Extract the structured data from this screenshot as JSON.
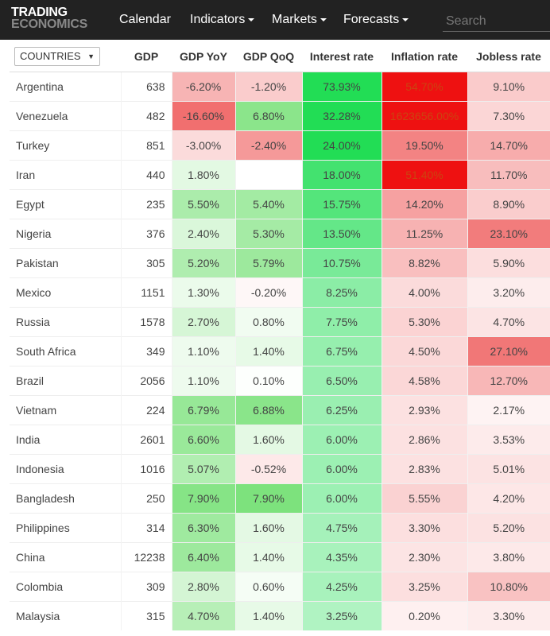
{
  "header": {
    "logo_line1": "TRADING",
    "logo_line2": "ECONOMICS",
    "nav": [
      {
        "label": "Calendar",
        "dropdown": false
      },
      {
        "label": "Indicators",
        "dropdown": true
      },
      {
        "label": "Markets",
        "dropdown": true
      },
      {
        "label": "Forecasts",
        "dropdown": true
      }
    ],
    "search_placeholder": "Search"
  },
  "table": {
    "countries_label": "COUNTRIES",
    "columns": [
      "GDP",
      "GDP YoY",
      "GDP QoQ",
      "Interest rate",
      "Inflation rate",
      "Jobless rate"
    ],
    "rows": [
      {
        "country": "Argentina",
        "gdp": "638",
        "yoy": "-6.20%",
        "qoq": "-1.20%",
        "interest": "73.93%",
        "inflation": "54.70%",
        "jobless": "9.10%"
      },
      {
        "country": "Venezuela",
        "gdp": "482",
        "yoy": "-16.60%",
        "qoq": "6.80%",
        "interest": "32.28%",
        "inflation": "1623656.00%",
        "jobless": "7.30%"
      },
      {
        "country": "Turkey",
        "gdp": "851",
        "yoy": "-3.00%",
        "qoq": "-2.40%",
        "interest": "24.00%",
        "inflation": "19.50%",
        "jobless": "14.70%"
      },
      {
        "country": "Iran",
        "gdp": "440",
        "yoy": "1.80%",
        "qoq": "",
        "interest": "18.00%",
        "inflation": "51.40%",
        "jobless": "11.70%"
      },
      {
        "country": "Egypt",
        "gdp": "235",
        "yoy": "5.50%",
        "qoq": "5.40%",
        "interest": "15.75%",
        "inflation": "14.20%",
        "jobless": "8.90%"
      },
      {
        "country": "Nigeria",
        "gdp": "376",
        "yoy": "2.40%",
        "qoq": "5.30%",
        "interest": "13.50%",
        "inflation": "11.25%",
        "jobless": "23.10%"
      },
      {
        "country": "Pakistan",
        "gdp": "305",
        "yoy": "5.20%",
        "qoq": "5.79%",
        "interest": "10.75%",
        "inflation": "8.82%",
        "jobless": "5.90%"
      },
      {
        "country": "Mexico",
        "gdp": "1151",
        "yoy": "1.30%",
        "qoq": "-0.20%",
        "interest": "8.25%",
        "inflation": "4.00%",
        "jobless": "3.20%"
      },
      {
        "country": "Russia",
        "gdp": "1578",
        "yoy": "2.70%",
        "qoq": "0.80%",
        "interest": "7.75%",
        "inflation": "5.30%",
        "jobless": "4.70%"
      },
      {
        "country": "South Africa",
        "gdp": "349",
        "yoy": "1.10%",
        "qoq": "1.40%",
        "interest": "6.75%",
        "inflation": "4.50%",
        "jobless": "27.10%"
      },
      {
        "country": "Brazil",
        "gdp": "2056",
        "yoy": "1.10%",
        "qoq": "0.10%",
        "interest": "6.50%",
        "inflation": "4.58%",
        "jobless": "12.70%"
      },
      {
        "country": "Vietnam",
        "gdp": "224",
        "yoy": "6.79%",
        "qoq": "6.88%",
        "interest": "6.25%",
        "inflation": "2.93%",
        "jobless": "2.17%"
      },
      {
        "country": "India",
        "gdp": "2601",
        "yoy": "6.60%",
        "qoq": "1.60%",
        "interest": "6.00%",
        "inflation": "2.86%",
        "jobless": "3.53%"
      },
      {
        "country": "Indonesia",
        "gdp": "1016",
        "yoy": "5.07%",
        "qoq": "-0.52%",
        "interest": "6.00%",
        "inflation": "2.83%",
        "jobless": "5.01%"
      },
      {
        "country": "Bangladesh",
        "gdp": "250",
        "yoy": "7.90%",
        "qoq": "7.90%",
        "interest": "6.00%",
        "inflation": "5.55%",
        "jobless": "4.20%"
      },
      {
        "country": "Philippines",
        "gdp": "314",
        "yoy": "6.30%",
        "qoq": "1.60%",
        "interest": "4.75%",
        "inflation": "3.30%",
        "jobless": "5.20%"
      },
      {
        "country": "China",
        "gdp": "12238",
        "yoy": "6.40%",
        "qoq": "1.40%",
        "interest": "4.35%",
        "inflation": "2.30%",
        "jobless": "3.80%"
      },
      {
        "country": "Colombia",
        "gdp": "309",
        "yoy": "2.80%",
        "qoq": "0.60%",
        "interest": "4.25%",
        "inflation": "3.25%",
        "jobless": "10.80%"
      },
      {
        "country": "Malaysia",
        "gdp": "315",
        "yoy": "4.70%",
        "qoq": "1.40%",
        "interest": "3.25%",
        "inflation": "0.20%",
        "jobless": "3.30%"
      }
    ]
  },
  "colors": {
    "topbar": "#222222",
    "strong_red": "#ee1111",
    "strong_green": "#22dd55",
    "positive_scale": "#66dd66",
    "negative_scale": "#ee5555"
  }
}
